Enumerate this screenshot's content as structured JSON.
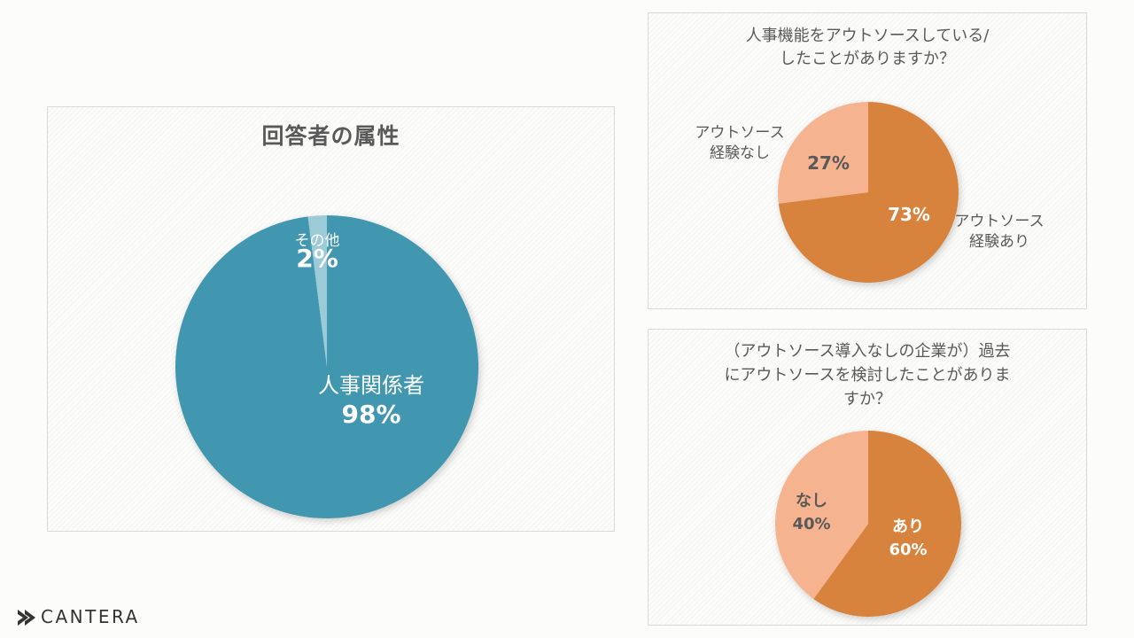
{
  "colors": {
    "teal": "#4397b0",
    "teal_light": "#9ccbd8",
    "orange": "#d8833d",
    "orange_light": "#f5b38f",
    "text": "#595959"
  },
  "logo": {
    "text": "CANTERA",
    "icon": "cantera-chevron-logo-icon"
  },
  "chart_data": [
    {
      "type": "pie",
      "title": "回答者の属性",
      "slices": [
        {
          "label": "人事関係者",
          "value": 98,
          "display": "98%",
          "color": "#4397b0"
        },
        {
          "label": "その他",
          "value": 2,
          "display": "2%",
          "color": "#9ccbd8"
        }
      ]
    },
    {
      "type": "pie",
      "title": [
        "人事機能をアウトソースしている/",
        "したことがありますか？"
      ],
      "slices": [
        {
          "label": [
            "アウトソース",
            "経験あり"
          ],
          "value": 73,
          "display": "73%",
          "color": "#d8833d"
        },
        {
          "label": [
            "アウトソース",
            "経験なし"
          ],
          "value": 27,
          "display": "27%",
          "color": "#f5b38f"
        }
      ]
    },
    {
      "type": "pie",
      "title": [
        "（アウトソース導入なしの企業が）過去",
        "にアウトソースを検討したことがありま",
        "すか？"
      ],
      "slices": [
        {
          "label": "あり",
          "value": 60,
          "display": "60%",
          "color": "#d8833d"
        },
        {
          "label": "なし",
          "value": 40,
          "display": "40%",
          "color": "#f5b38f"
        }
      ]
    }
  ]
}
